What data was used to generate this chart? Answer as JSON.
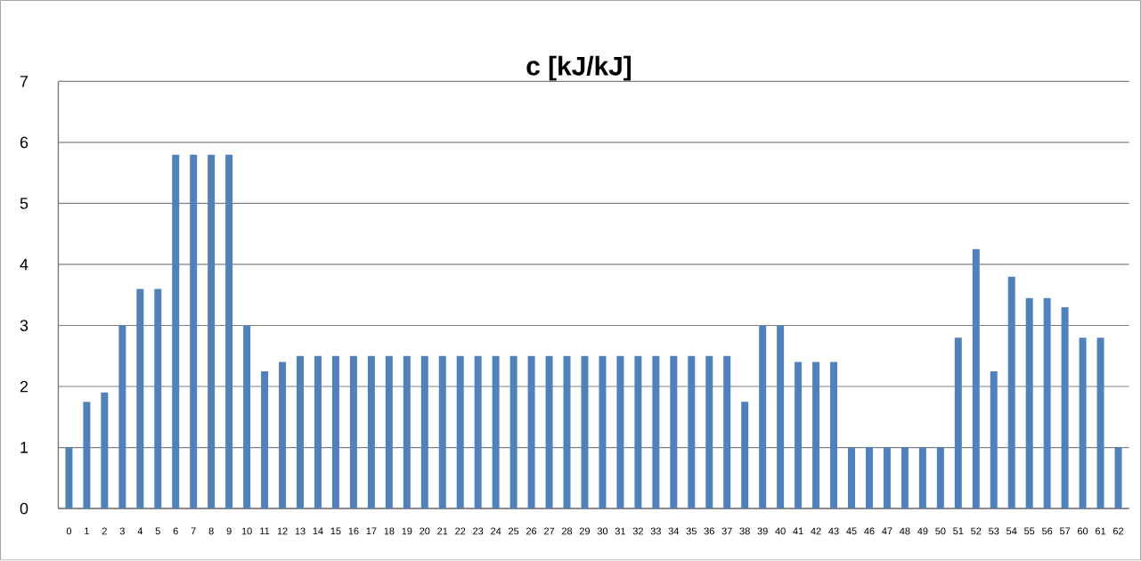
{
  "chart_data": {
    "type": "bar",
    "title": "c [kJ/kJ]",
    "categories": [
      "0",
      "1",
      "2",
      "3",
      "4",
      "5",
      "6",
      "7",
      "8",
      "9",
      "10",
      "11",
      "12",
      "13",
      "14",
      "15",
      "16",
      "17",
      "18",
      "19",
      "20",
      "21",
      "22",
      "23",
      "24",
      "25",
      "26",
      "27",
      "28",
      "29",
      "30",
      "31",
      "32",
      "33",
      "34",
      "35",
      "36",
      "37",
      "38",
      "39",
      "40",
      "41",
      "42",
      "43",
      "45",
      "46",
      "47",
      "48",
      "49",
      "50",
      "51",
      "52",
      "53",
      "54",
      "55",
      "56",
      "57",
      "60",
      "61",
      "62"
    ],
    "values": [
      1,
      1.75,
      1.9,
      3,
      3.6,
      3.6,
      5.8,
      5.8,
      5.8,
      5.8,
      3,
      2.25,
      2.4,
      2.5,
      2.5,
      2.5,
      2.5,
      2.5,
      2.5,
      2.5,
      2.5,
      2.5,
      2.5,
      2.5,
      2.5,
      2.5,
      2.5,
      2.5,
      2.5,
      2.5,
      2.5,
      2.5,
      2.5,
      2.5,
      2.5,
      2.5,
      2.5,
      2.5,
      1.75,
      3,
      3,
      2.4,
      2.4,
      2.4,
      1,
      1,
      1,
      1,
      1,
      1,
      2.8,
      4.25,
      2.25,
      3.8,
      3.45,
      3.45,
      3.3,
      2.8,
      2.8,
      1
    ],
    "color": "#4f81bd",
    "ylim": [
      0,
      7
    ],
    "yticks": [
      0,
      1,
      2,
      3,
      4,
      5,
      6,
      7
    ],
    "grid": "y"
  }
}
